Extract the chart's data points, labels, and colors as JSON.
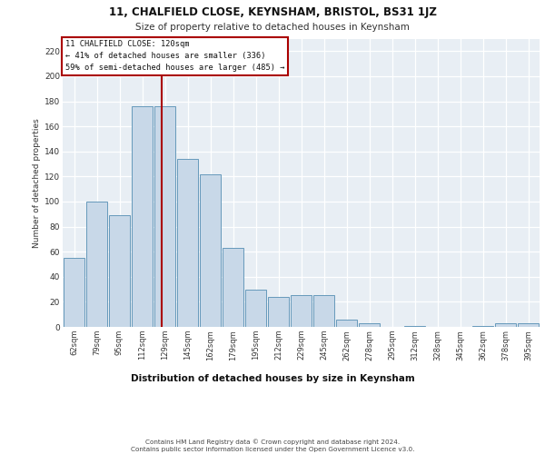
{
  "title": "11, CHALFIELD CLOSE, KEYNSHAM, BRISTOL, BS31 1JZ",
  "subtitle": "Size of property relative to detached houses in Keynsham",
  "xlabel": "Distribution of detached houses by size in Keynsham",
  "ylabel": "Number of detached properties",
  "categories": [
    "62sqm",
    "79sqm",
    "95sqm",
    "112sqm",
    "129sqm",
    "145sqm",
    "162sqm",
    "179sqm",
    "195sqm",
    "212sqm",
    "229sqm",
    "245sqm",
    "262sqm",
    "278sqm",
    "295sqm",
    "312sqm",
    "328sqm",
    "345sqm",
    "362sqm",
    "378sqm",
    "395sqm"
  ],
  "values": [
    55,
    100,
    89,
    176,
    176,
    134,
    122,
    63,
    30,
    24,
    25,
    25,
    6,
    3,
    0,
    1,
    0,
    0,
    1,
    3,
    3
  ],
  "bar_color": "#c8d8e8",
  "bar_edge_color": "#6699bb",
  "background_color": "#e8eef4",
  "grid_color": "#ffffff",
  "vline_x": 3.85,
  "vline_color": "#aa0000",
  "annotation_line1": "11 CHALFIELD CLOSE: 120sqm",
  "annotation_line2": "← 41% of detached houses are smaller (336)",
  "annotation_line3": "59% of semi-detached houses are larger (485) →",
  "annotation_box_color": "#aa0000",
  "ylim": [
    0,
    230
  ],
  "yticks": [
    0,
    20,
    40,
    60,
    80,
    100,
    120,
    140,
    160,
    180,
    200,
    220
  ],
  "footer_line1": "Contains HM Land Registry data © Crown copyright and database right 2024.",
  "footer_line2": "Contains public sector information licensed under the Open Government Licence v3.0."
}
